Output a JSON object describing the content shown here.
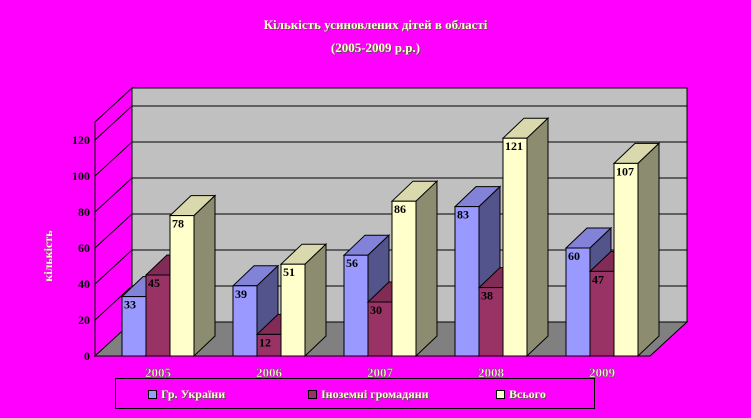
{
  "chart_data": {
    "type": "bar",
    "title": "Кількість усиновлених дітей в області",
    "subtitle": "(2005-2009 р.р.)",
    "ylabel": "кількість",
    "xlabel": "",
    "ylim": [
      0,
      120
    ],
    "yticks": [
      0,
      20,
      40,
      60,
      80,
      100,
      120
    ],
    "grid": true,
    "legend_position": "bottom",
    "categories": [
      "2005",
      "2006",
      "2007",
      "2008",
      "2009"
    ],
    "series": [
      {
        "name": "Гр. України",
        "values": [
          33,
          39,
          56,
          83,
          60
        ],
        "color": "#9999ff"
      },
      {
        "name": "Іноземні громадяни",
        "values": [
          45,
          12,
          30,
          38,
          47
        ],
        "color": "#993366"
      },
      {
        "name": "Всього",
        "values": [
          78,
          51,
          86,
          121,
          107
        ],
        "color": "#ffffcc"
      }
    ]
  },
  "colors": {
    "background": "#ff00ff",
    "plot_wall": "#c0c0c0",
    "floor": "#808080",
    "text": "#ffffcc"
  }
}
